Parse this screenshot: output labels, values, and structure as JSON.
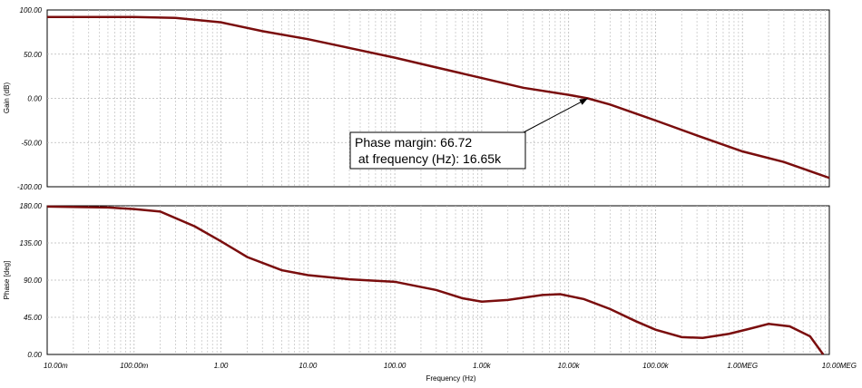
{
  "chart_data": [
    {
      "type": "line",
      "panel": "gain",
      "ylabel": "Gain (dB)",
      "ylim": [
        -100,
        100
      ],
      "y_ticks": [
        "100.00",
        "50.00",
        "0.00",
        "-50.00",
        "-100.00"
      ],
      "x_scale": "log",
      "xlim": [
        0.01,
        10000000
      ],
      "grid": true,
      "series": [
        {
          "color": "#7a0d0d",
          "x": [
            0.01,
            0.1,
            0.3,
            1,
            3,
            10,
            30,
            100,
            300,
            1000,
            3000,
            10000,
            16650,
            30000,
            100000,
            300000,
            1000000,
            3000000,
            10000000
          ],
          "y": [
            92,
            92,
            91,
            86,
            76,
            67,
            57,
            46,
            35,
            23,
            12,
            4,
            0,
            -7,
            -25,
            -42,
            -60,
            -72,
            -90
          ]
        }
      ],
      "annotation": {
        "line1": "Phase margin: 66.72",
        "line2": " at frequency (Hz): 16.65k",
        "target_x": 16650,
        "target_y": 0
      }
    },
    {
      "type": "line",
      "panel": "phase",
      "ylabel": "Phase [deg]",
      "xlabel": "Frequency (Hz)",
      "ylim": [
        0,
        180
      ],
      "y_ticks": [
        "180.00",
        "135.00",
        "90.00",
        "45.00",
        "0.00"
      ],
      "x_scale": "log",
      "xlim": [
        0.01,
        10000000
      ],
      "x_ticks": [
        "10.00m",
        "100.00m",
        "1.00",
        "10.00",
        "100.00",
        "1.00k",
        "10.00k",
        "100.00k",
        "1.00MEG",
        "10.00MEG"
      ],
      "grid": true,
      "series": [
        {
          "color": "#7a0d0d",
          "x": [
            0.01,
            0.05,
            0.1,
            0.2,
            0.5,
            1,
            2,
            5,
            10,
            30,
            100,
            300,
            600,
            1000,
            2000,
            5000,
            8000,
            15000,
            30000,
            60000,
            100000,
            200000,
            350000,
            700000,
            1200000,
            2000000,
            3500000,
            6000000,
            8500000
          ],
          "y": [
            179,
            178,
            176,
            173,
            155,
            137,
            118,
            102,
            96,
            91,
            88,
            78,
            68,
            64,
            66,
            72,
            73,
            67,
            55,
            40,
            30,
            21,
            20,
            25,
            31,
            37,
            34,
            22,
            0
          ]
        }
      ]
    }
  ]
}
